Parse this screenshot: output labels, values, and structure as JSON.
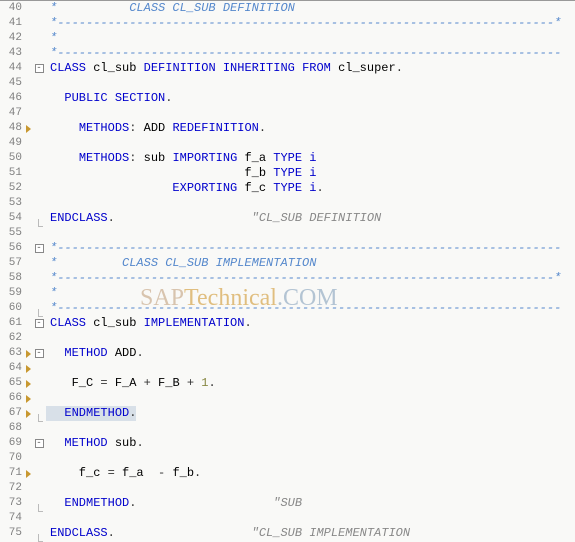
{
  "watermark": {
    "part1": "SAP",
    "part2": "Technical",
    "part3": ".COM"
  },
  "lines": [
    {
      "n": 40,
      "bp": false,
      "fold": "line",
      "code": [
        {
          "t": "*          CLASS CL_SUB DEFINITION",
          "c": "cm"
        }
      ]
    },
    {
      "n": 41,
      "bp": false,
      "fold": "line",
      "code": [
        {
          "t": "*---------------------------------------------------------------------*",
          "c": "cm"
        }
      ]
    },
    {
      "n": 42,
      "bp": false,
      "fold": "line",
      "code": [
        {
          "t": "*",
          "c": "cm"
        }
      ]
    },
    {
      "n": 43,
      "bp": false,
      "fold": "line",
      "code": [
        {
          "t": "*----------------------------------------------------------------------",
          "c": "cm"
        }
      ]
    },
    {
      "n": 44,
      "bp": false,
      "fold": "box",
      "code": [
        {
          "t": "CLASS ",
          "c": "kw"
        },
        {
          "t": "cl_sub ",
          "c": ""
        },
        {
          "t": "DEFINITION INHERITING FROM ",
          "c": "kw"
        },
        {
          "t": "cl_super",
          "c": ""
        },
        {
          "t": ".",
          "c": "punct"
        }
      ]
    },
    {
      "n": 45,
      "bp": false,
      "fold": "line",
      "code": []
    },
    {
      "n": 46,
      "bp": false,
      "fold": "line",
      "code": [
        {
          "t": "  ",
          "c": ""
        },
        {
          "t": "PUBLIC SECTION",
          "c": "kw"
        },
        {
          "t": ".",
          "c": "punct"
        }
      ]
    },
    {
      "n": 47,
      "bp": false,
      "fold": "line",
      "code": []
    },
    {
      "n": 48,
      "bp": true,
      "fold": "line",
      "code": [
        {
          "t": "    ",
          "c": ""
        },
        {
          "t": "METHODS",
          "c": "kw"
        },
        {
          "t": ": ",
          "c": "punct"
        },
        {
          "t": "ADD ",
          "c": ""
        },
        {
          "t": "REDEFINITION",
          "c": "kw"
        },
        {
          "t": ".",
          "c": "punct"
        }
      ]
    },
    {
      "n": 49,
      "bp": false,
      "fold": "line",
      "code": []
    },
    {
      "n": 50,
      "bp": false,
      "fold": "line",
      "code": [
        {
          "t": "    ",
          "c": ""
        },
        {
          "t": "METHODS",
          "c": "kw"
        },
        {
          "t": ": ",
          "c": "punct"
        },
        {
          "t": "sub ",
          "c": ""
        },
        {
          "t": "IMPORTING ",
          "c": "kw"
        },
        {
          "t": "f_a ",
          "c": ""
        },
        {
          "t": "TYPE ",
          "c": "kw"
        },
        {
          "t": "i",
          "c": "kw"
        }
      ]
    },
    {
      "n": 51,
      "bp": false,
      "fold": "line",
      "code": [
        {
          "t": "                           f_b ",
          "c": ""
        },
        {
          "t": "TYPE ",
          "c": "kw"
        },
        {
          "t": "i",
          "c": "kw"
        }
      ]
    },
    {
      "n": 52,
      "bp": false,
      "fold": "line",
      "code": [
        {
          "t": "                 ",
          "c": ""
        },
        {
          "t": "EXPORTING ",
          "c": "kw"
        },
        {
          "t": "f_c ",
          "c": ""
        },
        {
          "t": "TYPE ",
          "c": "kw"
        },
        {
          "t": "i",
          "c": "kw"
        },
        {
          "t": ".",
          "c": "punct"
        }
      ]
    },
    {
      "n": 53,
      "bp": false,
      "fold": "line",
      "code": []
    },
    {
      "n": 54,
      "bp": false,
      "fold": "end",
      "code": [
        {
          "t": "ENDCLASS",
          "c": "kw"
        },
        {
          "t": ".",
          "c": "punct"
        },
        {
          "t": "                   ",
          "c": ""
        },
        {
          "t": "\"CL_SUB DEFINITION",
          "c": "cm2"
        }
      ]
    },
    {
      "n": 55,
      "bp": false,
      "fold": "",
      "code": []
    },
    {
      "n": 56,
      "bp": false,
      "fold": "box",
      "code": [
        {
          "t": "*----------------------------------------------------------------------",
          "c": "cm"
        }
      ]
    },
    {
      "n": 57,
      "bp": false,
      "fold": "line",
      "code": [
        {
          "t": "*         CLASS CL_SUB IMPLEMENTATION",
          "c": "cm"
        }
      ]
    },
    {
      "n": 58,
      "bp": false,
      "fold": "line",
      "code": [
        {
          "t": "*---------------------------------------------------------------------*",
          "c": "cm"
        }
      ]
    },
    {
      "n": 59,
      "bp": false,
      "fold": "line",
      "code": [
        {
          "t": "*",
          "c": "cm"
        }
      ]
    },
    {
      "n": 60,
      "bp": false,
      "fold": "end",
      "code": [
        {
          "t": "*----------------------------------------------------------------------",
          "c": "cm"
        }
      ]
    },
    {
      "n": 61,
      "bp": false,
      "fold": "box",
      "code": [
        {
          "t": "CLASS ",
          "c": "kw"
        },
        {
          "t": "cl_sub ",
          "c": ""
        },
        {
          "t": "IMPLEMENTATION",
          "c": "kw"
        },
        {
          "t": ".",
          "c": "punct"
        }
      ]
    },
    {
      "n": 62,
      "bp": false,
      "fold": "line",
      "code": []
    },
    {
      "n": 63,
      "bp": true,
      "fold": "box",
      "code": [
        {
          "t": "  ",
          "c": ""
        },
        {
          "t": "METHOD ",
          "c": "kw"
        },
        {
          "t": "ADD",
          "c": ""
        },
        {
          "t": ".",
          "c": "punct"
        }
      ]
    },
    {
      "n": 64,
      "bp": true,
      "fold": "line",
      "code": []
    },
    {
      "n": 65,
      "bp": true,
      "fold": "line",
      "code": [
        {
          "t": "   F_C ",
          "c": ""
        },
        {
          "t": "= ",
          "c": "punct"
        },
        {
          "t": "F_A ",
          "c": ""
        },
        {
          "t": "+ ",
          "c": "punct"
        },
        {
          "t": "F_B ",
          "c": ""
        },
        {
          "t": "+ ",
          "c": "punct"
        },
        {
          "t": "1",
          "c": "num"
        },
        {
          "t": ".",
          "c": "punct"
        }
      ]
    },
    {
      "n": 66,
      "bp": true,
      "fold": "line",
      "code": []
    },
    {
      "n": 67,
      "bp": true,
      "fold": "end",
      "code": [
        {
          "t": "  ",
          "c": ""
        },
        {
          "t": "ENDMETHOD",
          "c": "kw"
        },
        {
          "t": ".",
          "c": "punct"
        }
      ],
      "hl": true
    },
    {
      "n": 68,
      "bp": false,
      "fold": "line",
      "code": []
    },
    {
      "n": 69,
      "bp": false,
      "fold": "box",
      "code": [
        {
          "t": "  ",
          "c": ""
        },
        {
          "t": "METHOD ",
          "c": "kw"
        },
        {
          "t": "sub",
          "c": ""
        },
        {
          "t": ".",
          "c": "punct"
        }
      ]
    },
    {
      "n": 70,
      "bp": false,
      "fold": "line",
      "code": []
    },
    {
      "n": 71,
      "bp": true,
      "fold": "line",
      "code": [
        {
          "t": "    f_c ",
          "c": ""
        },
        {
          "t": "= ",
          "c": "punct"
        },
        {
          "t": "f_a  ",
          "c": ""
        },
        {
          "t": "- ",
          "c": "punct"
        },
        {
          "t": "f_b",
          "c": ""
        },
        {
          "t": ".",
          "c": "punct"
        }
      ]
    },
    {
      "n": 72,
      "bp": false,
      "fold": "line",
      "code": []
    },
    {
      "n": 73,
      "bp": false,
      "fold": "end",
      "code": [
        {
          "t": "  ",
          "c": ""
        },
        {
          "t": "ENDMETHOD",
          "c": "kw"
        },
        {
          "t": ".",
          "c": "punct"
        },
        {
          "t": "                   ",
          "c": ""
        },
        {
          "t": "\"SUB",
          "c": "cm2"
        }
      ]
    },
    {
      "n": 74,
      "bp": false,
      "fold": "line",
      "code": []
    },
    {
      "n": 75,
      "bp": false,
      "fold": "end",
      "code": [
        {
          "t": "ENDCLASS",
          "c": "kw"
        },
        {
          "t": ".",
          "c": "punct"
        },
        {
          "t": "                   ",
          "c": ""
        },
        {
          "t": "\"CL_SUB IMPLEMENTATION",
          "c": "cm2"
        }
      ]
    }
  ]
}
